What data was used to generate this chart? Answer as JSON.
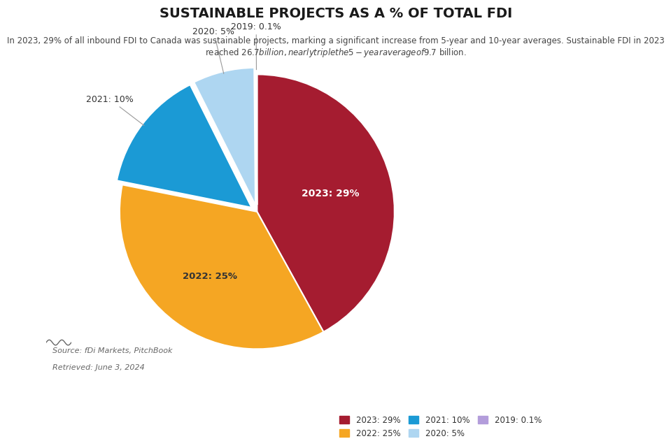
{
  "title": "SUSTAINABLE PROJECTS AS A % OF TOTAL FDI",
  "subtitle": "In 2023, 29% of all inbound FDI to Canada was sustainable projects, marking a significant increase from 5-year and 10-year averages. Sustainable FDI in 2023\nreached $26.7 billion, nearly triple the 5-year average of $9.7 billion.",
  "labels": [
    "2023",
    "2022",
    "2021",
    "2020",
    "2019"
  ],
  "values": [
    29,
    25,
    10,
    5,
    0.1
  ],
  "colors": [
    "#a51c30",
    "#f5a623",
    "#1b9ad5",
    "#aed6f1",
    "#b39ddb"
  ],
  "legend_labels": [
    "2023: 29%",
    "2022: 25%",
    "2021: 10%",
    "2020: 5%",
    "2019: 0.1%"
  ],
  "pie_labels": [
    "2023: 29%",
    "2022: 25%",
    "2021: 10%",
    "2020: 5%",
    "2019: 0.1%"
  ],
  "source_text": "Source: fDi Markets, PitchBook",
  "retrieved_text": "Retrieved: June 3, 2024",
  "background_color": "#ffffff",
  "startangle": 90,
  "explode": [
    0,
    0,
    0.05,
    0.05,
    0.05
  ]
}
